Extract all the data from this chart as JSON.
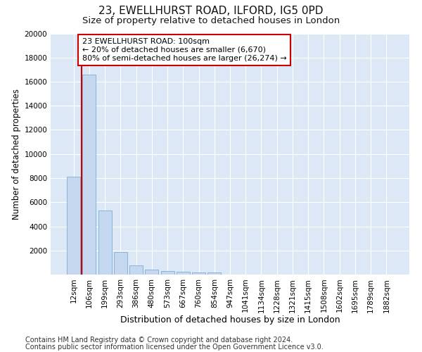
{
  "title1": "23, EWELLHURST ROAD, ILFORD, IG5 0PD",
  "title2": "Size of property relative to detached houses in London",
  "xlabel": "Distribution of detached houses by size in London",
  "ylabel": "Number of detached properties",
  "categories": [
    "12sqm",
    "106sqm",
    "199sqm",
    "293sqm",
    "386sqm",
    "480sqm",
    "573sqm",
    "667sqm",
    "760sqm",
    "854sqm",
    "947sqm",
    "1041sqm",
    "1134sqm",
    "1228sqm",
    "1321sqm",
    "1415sqm",
    "1508sqm",
    "1602sqm",
    "1695sqm",
    "1789sqm",
    "1882sqm"
  ],
  "values": [
    8100,
    16600,
    5300,
    1850,
    750,
    380,
    280,
    220,
    200,
    170,
    0,
    0,
    0,
    0,
    0,
    0,
    0,
    0,
    0,
    0,
    0
  ],
  "bar_color": "#c5d8f0",
  "bar_edge_color": "#7baed4",
  "vline_x": 0.5,
  "vline_color": "#cc0000",
  "annotation_text": "23 EWELLHURST ROAD: 100sqm\n← 20% of detached houses are smaller (6,670)\n80% of semi-detached houses are larger (26,274) →",
  "annotation_box_facecolor": "#ffffff",
  "annotation_box_edgecolor": "#cc0000",
  "ylim": [
    0,
    20000
  ],
  "yticks": [
    0,
    2000,
    4000,
    6000,
    8000,
    10000,
    12000,
    14000,
    16000,
    18000,
    20000
  ],
  "fig_facecolor": "#ffffff",
  "ax_facecolor": "#dce8f5",
  "grid_color": "#ffffff",
  "footer1": "Contains HM Land Registry data © Crown copyright and database right 2024.",
  "footer2": "Contains public sector information licensed under the Open Government Licence v3.0.",
  "title1_fontsize": 11,
  "title2_fontsize": 9.5,
  "xlabel_fontsize": 9,
  "ylabel_fontsize": 8.5,
  "tick_fontsize": 7.5,
  "footer_fontsize": 7,
  "ann_fontsize": 8
}
